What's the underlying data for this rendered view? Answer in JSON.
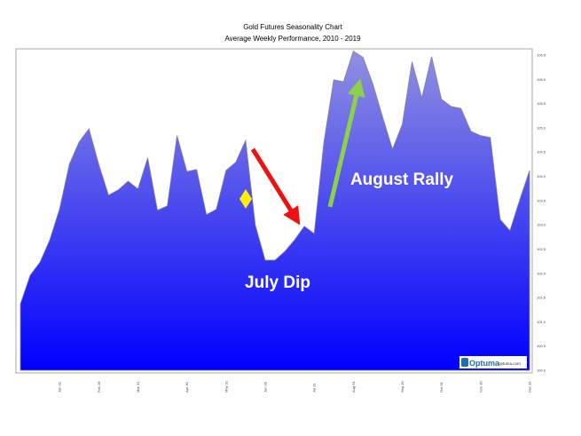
{
  "chart_data": {
    "type": "area",
    "title": "Gold Futures Seasonality Chart",
    "subtitle": "Average Weekly Performance, 2010 - 2019",
    "xlabel": "",
    "ylabel": "",
    "ylim": [
      100.0,
      106.5
    ],
    "yticks": [
      "100.0",
      "100.5",
      "101.0",
      "101.5",
      "102.0",
      "102.5",
      "103.0",
      "103.5",
      "104.0",
      "104.5",
      "105.0",
      "105.5",
      "106.0",
      "106.5"
    ],
    "xticks": [
      "Jan 31",
      "Feb 28",
      "Mar 31",
      "Apr 30",
      "May 31",
      "Jun 30",
      "Jul 31",
      "Aug 31",
      "Sep 30",
      "Oct 31",
      "Nov 30",
      "Dec 31"
    ],
    "xtick_weeks": [
      4,
      8,
      12,
      17,
      21,
      25,
      30,
      34,
      39,
      43,
      47,
      52
    ],
    "week": [
      0,
      1,
      2,
      3,
      4,
      5,
      6,
      7,
      8,
      9,
      10,
      11,
      12,
      13,
      14,
      15,
      16,
      17,
      18,
      19,
      20,
      21,
      22,
      23,
      24,
      25,
      26,
      27,
      28,
      29,
      30,
      31,
      32,
      33,
      34,
      35,
      36,
      37,
      38,
      39,
      40,
      41,
      42,
      43,
      44,
      45,
      46,
      47,
      48,
      49,
      50,
      51,
      52
    ],
    "values": [
      101.37,
      101.96,
      102.23,
      102.69,
      103.33,
      104.25,
      104.71,
      104.98,
      104.25,
      103.61,
      103.72,
      103.9,
      103.74,
      104.38,
      103.3,
      103.39,
      104.84,
      104.1,
      104.14,
      103.21,
      103.32,
      104.12,
      104.29,
      104.74,
      102.99,
      102.27,
      102.27,
      102.45,
      102.69,
      102.97,
      102.82,
      104.71,
      105.99,
      105.95,
      106.58,
      106.45,
      105.9,
      105.22,
      104.56,
      105.07,
      106.36,
      105.62,
      106.47,
      105.59,
      105.44,
      105.4,
      104.93,
      104.84,
      104.8,
      103.11,
      102.88,
      103.52,
      104.12
    ],
    "annotations": {
      "dip": "July Dip",
      "rally": "August Rally"
    },
    "colors": {
      "fill_top": "#9090e0",
      "fill_bottom": "#0000ff",
      "dip_arrow": "#ee1111",
      "rally_arrow": "#8dd14a",
      "marker": "#ffee00"
    },
    "grid": false
  },
  "logo": {
    "brand": "Optuma",
    "url_text": "optuma.com"
  }
}
